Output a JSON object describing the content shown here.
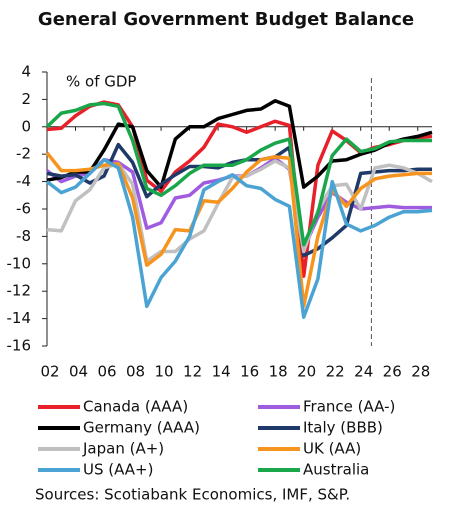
{
  "chart_data": {
    "type": "line",
    "title": "General Government Budget Balance",
    "annotation": "% of GDP",
    "source": "Sources: Scotiabank Economics, IMF, S&P.",
    "x": [
      2002,
      2003,
      2004,
      2005,
      2006,
      2007,
      2008,
      2009,
      2010,
      2011,
      2012,
      2013,
      2014,
      2015,
      2016,
      2017,
      2018,
      2019,
      2020,
      2021,
      2022,
      2023,
      2024,
      2025,
      2026,
      2027,
      2028,
      2029
    ],
    "xlim": [
      2002,
      2029
    ],
    "xticks": [
      {
        "value": 2002,
        "label": "02"
      },
      {
        "value": 2004,
        "label": "04"
      },
      {
        "value": 2006,
        "label": "06"
      },
      {
        "value": 2008,
        "label": "08"
      },
      {
        "value": 2010,
        "label": "10"
      },
      {
        "value": 2012,
        "label": "12"
      },
      {
        "value": 2014,
        "label": "14"
      },
      {
        "value": 2016,
        "label": "16"
      },
      {
        "value": 2018,
        "label": "18"
      },
      {
        "value": 2020,
        "label": "20"
      },
      {
        "value": 2022,
        "label": "22"
      },
      {
        "value": 2024,
        "label": "24"
      },
      {
        "value": 2026,
        "label": "26"
      },
      {
        "value": 2028,
        "label": "28"
      }
    ],
    "ylim": [
      -16,
      4
    ],
    "yticks": [
      4,
      2,
      0,
      -2,
      -4,
      -6,
      -8,
      -10,
      -12,
      -14,
      -16
    ],
    "vlines": [
      2024.75
    ],
    "series": [
      {
        "name": "Canada (AAA)",
        "color": "#e8202a",
        "values": [
          -0.2,
          -0.1,
          0.8,
          1.5,
          1.8,
          1.6,
          0,
          -3.9,
          -4.7,
          -3.3,
          -2.5,
          -1.5,
          0.2,
          0,
          -0.4,
          0,
          0.4,
          0.1,
          -10.9,
          -2.8,
          -0.3,
          -1.0,
          -1.9,
          -1.5,
          -1.3,
          -1.0,
          -0.8,
          -0.7
        ]
      },
      {
        "name": "France (AA-)",
        "color": "#a05ce0",
        "values": [
          -3.2,
          -4.0,
          -3.6,
          -3.4,
          -2.4,
          -2.6,
          -3.3,
          -7.4,
          -7.0,
          -5.2,
          -5.0,
          -4.1,
          -3.9,
          -3.6,
          -3.6,
          -3.0,
          -2.3,
          -3.1,
          -8.9,
          -6.6,
          -4.8,
          -5.5,
          -6.0,
          -5.9,
          -5.8,
          -5.9,
          -5.9,
          -5.9
        ]
      },
      {
        "name": "Germany (AAA)",
        "color": "#000000",
        "values": [
          -3.9,
          -3.7,
          -3.3,
          -3.3,
          -1.7,
          0.2,
          0,
          -3.2,
          -4.4,
          -0.9,
          0,
          0,
          0.6,
          0.9,
          1.2,
          1.3,
          1.9,
          1.5,
          -4.4,
          -3.6,
          -2.5,
          -2.4,
          -2.0,
          -1.7,
          -1.2,
          -0.9,
          -0.7,
          -0.4
        ]
      },
      {
        "name": "Italy (BBB)",
        "color": "#1f3a68",
        "values": [
          -3.4,
          -3.6,
          -3.5,
          -4.1,
          -3.6,
          -1.3,
          -2.6,
          -5.1,
          -4.2,
          -3.5,
          -2.9,
          -2.9,
          -3.0,
          -2.6,
          -2.4,
          -2.4,
          -2.2,
          -1.5,
          -9.4,
          -8.9,
          -8.1,
          -7.2,
          -3.4,
          -3.3,
          -3.2,
          -3.2,
          -3.1,
          -3.1
        ]
      },
      {
        "name": "Japan (A+)",
        "color": "#c0c0c0",
        "values": [
          -7.5,
          -7.6,
          -5.4,
          -4.6,
          -3.0,
          -2.7,
          -4.2,
          -9.8,
          -9.1,
          -9.1,
          -8.2,
          -7.6,
          -5.6,
          -3.7,
          -3.6,
          -3.1,
          -2.5,
          -3.0,
          -9.1,
          -6.1,
          -4.3,
          -4.2,
          -6.0,
          -3.0,
          -2.8,
          -3.0,
          -3.4,
          -4.0
        ]
      },
      {
        "name": "UK (AA)",
        "color": "#f7941d",
        "values": [
          -1.9,
          -3.2,
          -3.2,
          -3.1,
          -2.8,
          -2.7,
          -5.2,
          -10.1,
          -9.3,
          -7.5,
          -7.6,
          -5.4,
          -5.5,
          -4.5,
          -3.3,
          -2.4,
          -2.2,
          -2.3,
          -13.1,
          -8.0,
          -4.6,
          -5.8,
          -4.5,
          -3.8,
          -3.6,
          -3.5,
          -3.4,
          -3.4
        ]
      },
      {
        "name": "US (AA+)",
        "color": "#4ba3d3",
        "values": [
          -4.0,
          -4.8,
          -4.4,
          -3.4,
          -2.4,
          -3.0,
          -6.6,
          -13.1,
          -11.0,
          -9.8,
          -8.0,
          -4.6,
          -4.0,
          -3.5,
          -4.3,
          -4.5,
          -5.3,
          -5.8,
          -13.9,
          -11.1,
          -4.0,
          -7.1,
          -7.6,
          -7.2,
          -6.6,
          -6.2,
          -6.2,
          -6.1
        ]
      },
      {
        "name": "Australia",
        "color": "#1aa64a",
        "values": [
          0,
          1.0,
          1.2,
          1.6,
          1.7,
          1.5,
          -1.0,
          -4.5,
          -5.0,
          -4.3,
          -3.4,
          -2.8,
          -2.8,
          -2.8,
          -2.4,
          -1.7,
          -1.2,
          -0.9,
          -8.6,
          -6.3,
          -2.1,
          -0.9,
          -1.8,
          -1.6,
          -1.1,
          -1.0,
          -1.0,
          -1.0
        ]
      }
    ]
  }
}
